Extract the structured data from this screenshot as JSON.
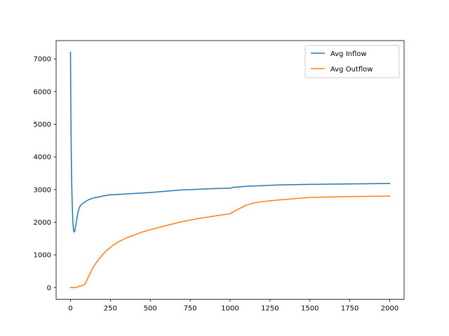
{
  "chart_data": {
    "type": "line",
    "title": "",
    "xlabel": "",
    "ylabel": "",
    "xlim": [
      -90,
      2090
    ],
    "ylim": [
      -360,
      7560
    ],
    "xticks": [
      0,
      250,
      500,
      750,
      1000,
      1250,
      1500,
      1750,
      2000
    ],
    "xtick_labels": [
      "0",
      "250",
      "500",
      "750",
      "1000",
      "1250",
      "1500",
      "1750",
      "2000"
    ],
    "yticks": [
      0,
      1000,
      2000,
      3000,
      4000,
      5000,
      6000,
      7000
    ],
    "ytick_labels": [
      "0",
      "1000",
      "2000",
      "3000",
      "4000",
      "5000",
      "6000",
      "7000"
    ],
    "grid": false,
    "legend_position": "top-right",
    "series": [
      {
        "name": "Avg Inflow",
        "color": "#1f77b4",
        "x": [
          0,
          3,
          6,
          10,
          14,
          18,
          22,
          28,
          35,
          45,
          55,
          70,
          90,
          110,
          130,
          150,
          175,
          200,
          225,
          250,
          300,
          400,
          500,
          600,
          700,
          800,
          900,
          1000,
          1020,
          1050,
          1100,
          1200,
          1300,
          1400,
          1500,
          1600,
          1700,
          1800,
          1900,
          2000
        ],
        "y": [
          7200,
          5000,
          3600,
          2700,
          2100,
          1800,
          1700,
          1750,
          1950,
          2250,
          2450,
          2550,
          2620,
          2680,
          2720,
          2750,
          2770,
          2800,
          2820,
          2840,
          2850,
          2880,
          2910,
          2950,
          2990,
          3010,
          3030,
          3040,
          3070,
          3080,
          3100,
          3120,
          3140,
          3150,
          3160,
          3165,
          3170,
          3175,
          3180,
          3185
        ]
      },
      {
        "name": "Avg Outflow",
        "color": "#ff7f0e",
        "x": [
          0,
          20,
          40,
          50,
          60,
          75,
          90,
          100,
          120,
          140,
          160,
          180,
          200,
          225,
          250,
          275,
          300,
          350,
          400,
          450,
          500,
          600,
          700,
          800,
          900,
          1000,
          1050,
          1100,
          1150,
          1200,
          1300,
          1400,
          1500,
          1600,
          1700,
          1800,
          1900,
          2000
        ],
        "y": [
          0,
          0,
          0,
          30,
          50,
          60,
          100,
          200,
          400,
          600,
          750,
          880,
          1000,
          1130,
          1230,
          1320,
          1400,
          1520,
          1610,
          1700,
          1770,
          1900,
          2020,
          2110,
          2190,
          2260,
          2400,
          2520,
          2590,
          2630,
          2680,
          2720,
          2760,
          2770,
          2780,
          2790,
          2795,
          2800
        ]
      }
    ]
  }
}
